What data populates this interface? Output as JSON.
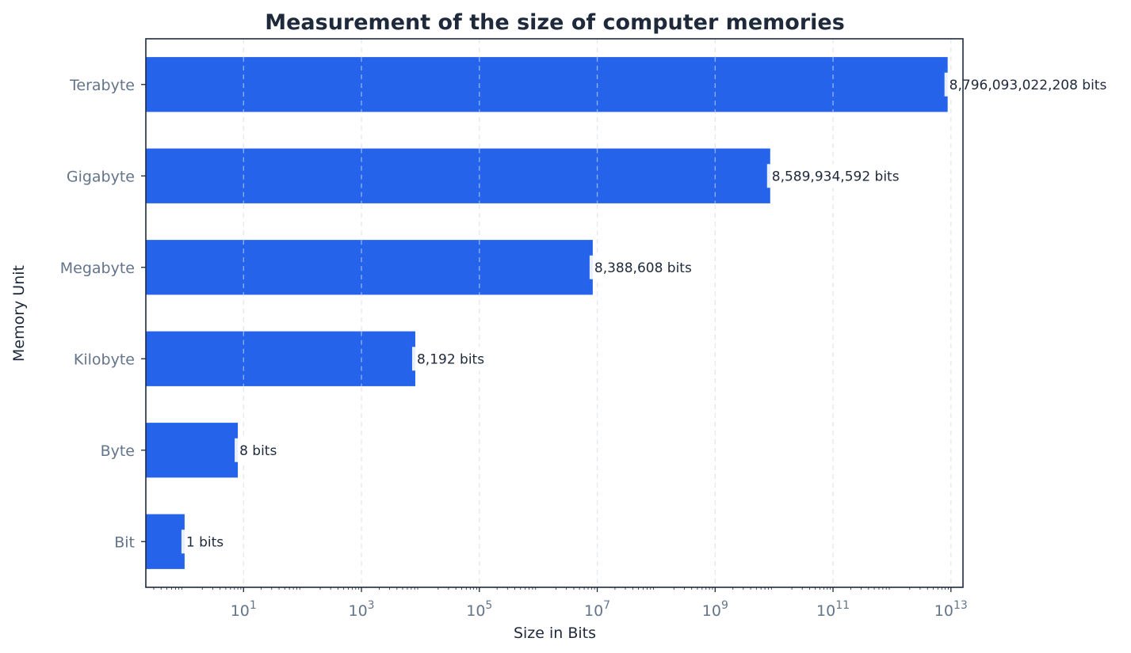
{
  "chart_data": {
    "type": "bar",
    "orientation": "horizontal",
    "title": "Measurement of the size of computer memories",
    "xlabel": "Size in Bits",
    "ylabel": "Memory Unit",
    "x_scale": "log",
    "xlim": [
      0.22,
      16000000000000
    ],
    "x_ticks": [
      {
        "value": 10,
        "base": "10",
        "exp": "1"
      },
      {
        "value": 1000,
        "base": "10",
        "exp": "3"
      },
      {
        "value": 100000,
        "base": "10",
        "exp": "5"
      },
      {
        "value": 10000000,
        "base": "10",
        "exp": "7"
      },
      {
        "value": 1000000000,
        "base": "10",
        "exp": "9"
      },
      {
        "value": 100000000000,
        "base": "10",
        "exp": "11"
      },
      {
        "value": 10000000000000,
        "base": "10",
        "exp": "13"
      }
    ],
    "categories": [
      "Bit",
      "Byte",
      "Kilobyte",
      "Megabyte",
      "Gigabyte",
      "Terabyte"
    ],
    "values": [
      1,
      8,
      8192,
      8388608,
      8589934592,
      8796093022208
    ],
    "data_labels": [
      "1 bits",
      "8 bits",
      "8,192 bits",
      "8,388,608 bits",
      "8,589,934,592 bits",
      "8,796,093,022,208 bits"
    ],
    "grid": "vertical dashed",
    "legend": "none",
    "colors": {
      "bar": "#2563eb",
      "title": "#1e293b",
      "tick_label": "#64748b",
      "axis_label": "#1e293b",
      "data_label": "#1e293b",
      "grid": "#e2e8f0",
      "frame": "#1e293b"
    }
  }
}
